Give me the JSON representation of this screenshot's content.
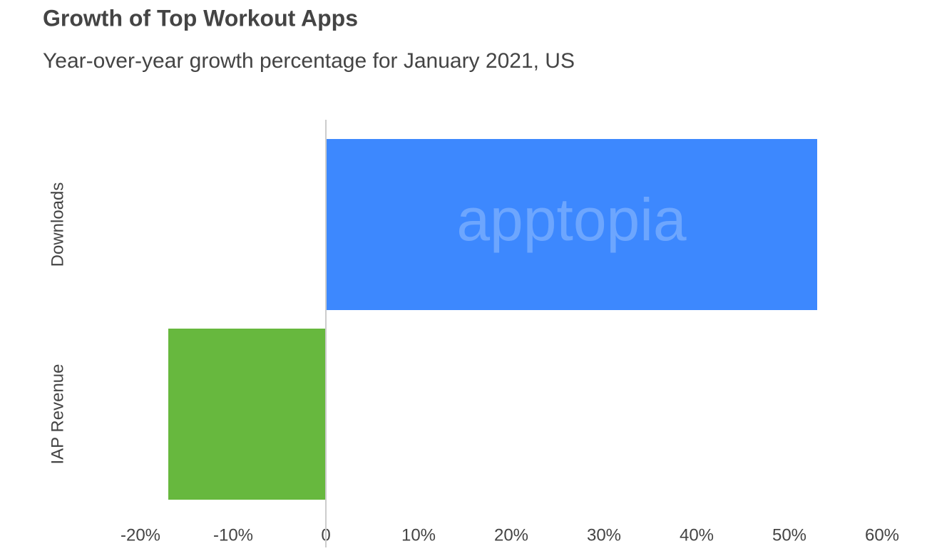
{
  "chart_data": {
    "type": "bar",
    "orientation": "horizontal",
    "title": "Growth of Top Workout Apps",
    "subtitle": "Year-over-year growth percentage for January 2021, US",
    "categories": [
      "Downloads",
      "IAP Revenue"
    ],
    "values": [
      53,
      -17
    ],
    "colors": [
      "#3d88fe",
      "#67b83e"
    ],
    "watermark": "apptopia",
    "xlim": [
      -20,
      60
    ],
    "xticks": [
      {
        "value": -20,
        "label": "-20%"
      },
      {
        "value": -10,
        "label": "-10%"
      },
      0,
      {
        "value": 10,
        "label": "10%"
      },
      {
        "value": 20,
        "label": "20%"
      },
      {
        "value": 30,
        "label": "30%"
      },
      {
        "value": 40,
        "label": "40%"
      },
      {
        "value": 50,
        "label": "50%"
      },
      {
        "value": 60,
        "label": "60%"
      }
    ],
    "grid": false
  }
}
